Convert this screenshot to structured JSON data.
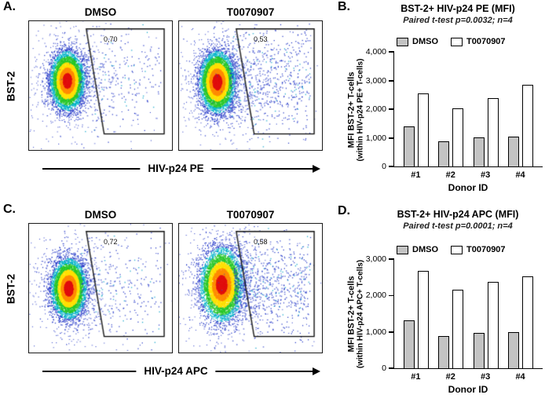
{
  "panels": {
    "a": {
      "label": "A.",
      "y_axis": "BST-2",
      "x_axis": "HIV-p24 PE",
      "plots": [
        {
          "title": "DMSO",
          "gate_pct": "0,70",
          "scatter_events": 320
        },
        {
          "title": "T0070907",
          "gate_pct": "0,53",
          "scatter_events": 700
        }
      ]
    },
    "b": {
      "label": "B."
    },
    "c": {
      "label": "C.",
      "y_axis": "BST-2",
      "x_axis": "HIV-p24 APC",
      "plots": [
        {
          "title": "DMSO",
          "gate_pct": "0,72",
          "scatter_events": 300
        },
        {
          "title": "T0070907",
          "gate_pct": "0,58",
          "scatter_events": 780
        }
      ]
    },
    "d": {
      "label": "D."
    }
  },
  "chart_data": [
    {
      "type": "bar",
      "panel": "B",
      "title": "BST-2+ HIV-p24 PE (MFI)",
      "subtitle": "Paired t-test p=0.0032; n=4",
      "categories": [
        "#1",
        "#2",
        "#3",
        "#4"
      ],
      "series": [
        {
          "name": "DMSO",
          "values": [
            1400,
            880,
            1020,
            1050
          ],
          "fill": "#c3c3c3"
        },
        {
          "name": "T0070907",
          "values": [
            2550,
            2040,
            2380,
            2840
          ],
          "fill": "#ffffff"
        }
      ],
      "xlabel": "Donor ID",
      "ylabel": "MFI BST-2+ T-cells",
      "ylabel2": "(within HIV-p24 PE+ T-cells)",
      "ylim": [
        0,
        4000
      ],
      "yticks": [
        0,
        1000,
        2000,
        3000,
        4000
      ],
      "grid": false,
      "legend_position": "top-left"
    },
    {
      "type": "bar",
      "panel": "D",
      "title": "BST-2+ HIV-p24 APC (MFI)",
      "subtitle": "Paired t-test p=0.0001; n=4",
      "categories": [
        "#1",
        "#2",
        "#3",
        "#4"
      ],
      "series": [
        {
          "name": "DMSO",
          "values": [
            1320,
            880,
            980,
            1000
          ],
          "fill": "#c3c3c3"
        },
        {
          "name": "T0070907",
          "values": [
            2680,
            2150,
            2380,
            2520
          ],
          "fill": "#ffffff"
        }
      ],
      "xlabel": "Donor ID",
      "ylabel": "MFI BST-2+ T-cells",
      "ylabel2": "(within HIV-p24 APC+ T-cells)",
      "ylim": [
        0,
        3000
      ],
      "yticks": [
        0,
        1000,
        2000,
        3000
      ],
      "grid": false,
      "legend_position": "top-left"
    }
  ]
}
